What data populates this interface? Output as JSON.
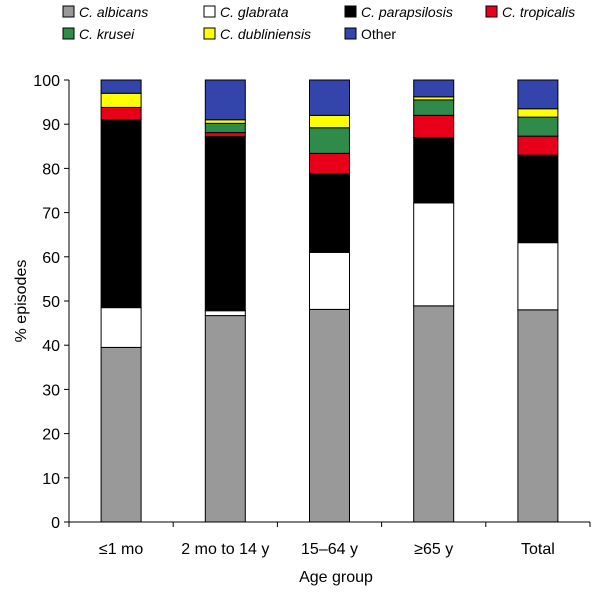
{
  "chart_data": {
    "type": "bar",
    "stacked": true,
    "xlabel": "Age group",
    "ylabel": "% episodes",
    "ylim": [
      0,
      100
    ],
    "yticks": [
      0,
      10,
      20,
      30,
      40,
      50,
      60,
      70,
      80,
      90,
      100
    ],
    "categories": [
      "≤1 mo",
      "2 mo to 14 y",
      "15–64 y",
      "≥65 y",
      "Total"
    ],
    "legend_position": "top",
    "series": [
      {
        "name": "C. albicans",
        "italic_prefix": "C.",
        "color": "#999999",
        "values": [
          39.5,
          46.7,
          48.1,
          48.9,
          48.0
        ]
      },
      {
        "name": "C. glabrata",
        "italic_prefix": "C.",
        "color": "#ffffff",
        "values": [
          9.0,
          1.1,
          12.9,
          23.3,
          15.2
        ]
      },
      {
        "name": "C. parapsilosis",
        "italic_prefix": "C.",
        "color": "#000000",
        "values": [
          42.5,
          39.4,
          17.8,
          14.8,
          19.8
        ]
      },
      {
        "name": "C. tropicalis",
        "italic_prefix": "C.",
        "color": "#e8001a",
        "values": [
          2.8,
          0.9,
          4.6,
          5.0,
          4.3
        ]
      },
      {
        "name": "C. krusei",
        "italic_prefix": "C.",
        "color": "#2e8b4a",
        "values": [
          0.0,
          2.1,
          5.8,
          3.5,
          4.3
        ]
      },
      {
        "name": "C. dubliniensis",
        "italic_prefix": "C.",
        "color": "#ffff00",
        "values": [
          3.2,
          0.8,
          2.8,
          0.7,
          1.9
        ]
      },
      {
        "name": "Other",
        "italic_prefix": "",
        "color": "#3344aa",
        "values": [
          3.0,
          9.0,
          8.0,
          3.8,
          6.5
        ]
      }
    ]
  }
}
